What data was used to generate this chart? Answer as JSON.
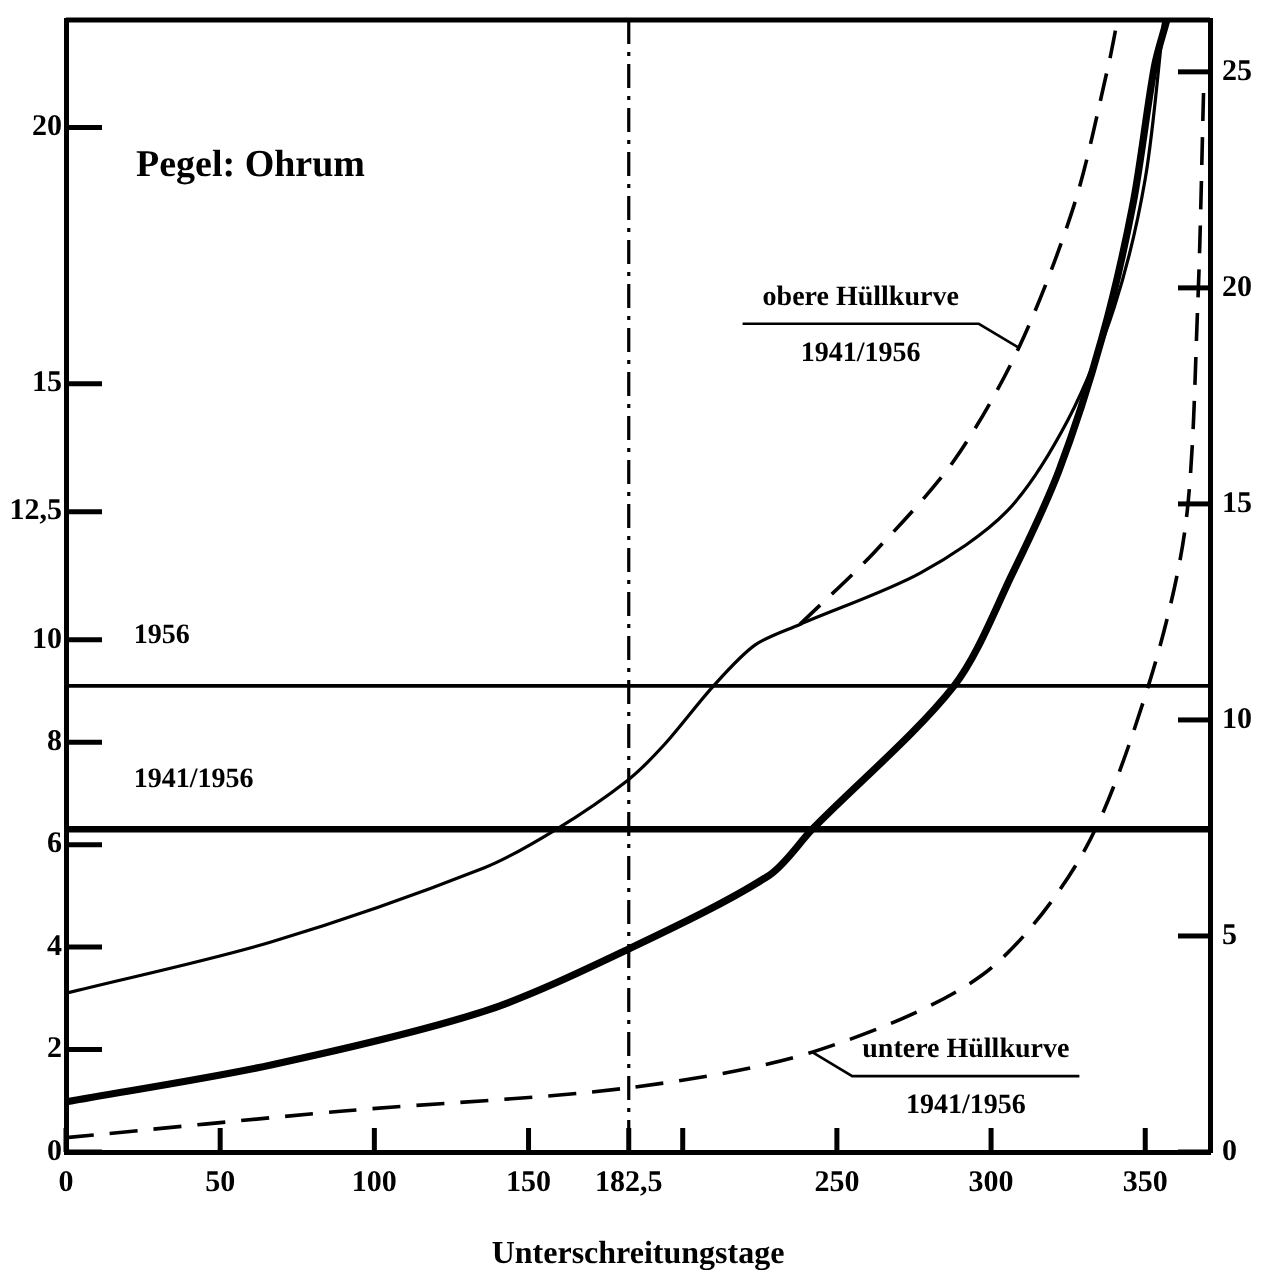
{
  "chart_data": {
    "type": "line",
    "title": "Pegel: Ohrum",
    "xlabel": "Unterschreitungstage",
    "xlim": [
      0,
      371
    ],
    "xticks": [
      0,
      50,
      100,
      150,
      {
        "value": 182.5,
        "label": "182,5"
      },
      {
        "value": 200,
        "label": null
      },
      250,
      300,
      350
    ],
    "ylim": [
      0,
      22.1
    ],
    "yticks": [
      0,
      2,
      4,
      6,
      8,
      10,
      {
        "value": 12.5,
        "label": "12,5"
      },
      15,
      20
    ],
    "y2lim": [
      0,
      26.2
    ],
    "y2ticks": [
      0,
      5,
      10,
      15,
      20,
      25
    ],
    "grid": false,
    "legend": false,
    "marker": "none",
    "series": [
      {
        "color": "#000000",
        "line_style": "solid",
        "x": [
          0,
          66.5,
          135.7,
          159,
          182,
          194,
          210,
          223.5,
          238,
          277,
          305,
          325,
          340,
          350,
          356
        ],
        "values": [
          3.1,
          4.1,
          5.55,
          6.3,
          7.25,
          7.95,
          9.1,
          9.9,
          10.3,
          11.3,
          12.5,
          14.3,
          16.5,
          19,
          22.1
        ]
      },
      {
        "color": "#000000",
        "line_style": "solid",
        "x": [
          0,
          66.5,
          135.7,
          182,
          228,
          242,
          288,
          307,
          322,
          336,
          346,
          353,
          357
        ],
        "values": [
          0.98,
          1.7,
          2.75,
          3.95,
          5.4,
          6.3,
          9.1,
          11.3,
          13.3,
          15.9,
          18.5,
          21.2,
          22.1
        ]
      },
      {
        "color": "#000000",
        "line_style": "dashed",
        "x": [
          238,
          262,
          288,
          309,
          327,
          338,
          341
        ],
        "values": [
          10.3,
          11.7,
          13.5,
          15.7,
          18.5,
          21.2,
          22.1
        ]
      },
      {
        "color": "#000000",
        "line_style": "dashed",
        "x": [
          0,
          90,
          182,
          242,
          297,
          329.5,
          351,
          363,
          367,
          369
        ],
        "values": [
          0.28,
          0.8,
          1.25,
          1.95,
          3.45,
          5.8,
          9.1,
          12.2,
          16.5,
          20.9
        ]
      }
    ],
    "ref_lines": [
      {
        "axis": "y",
        "value": 9.1,
        "line_style": "solid"
      },
      {
        "axis": "y",
        "value": 6.3,
        "line_style": "solid"
      },
      {
        "axis": "x",
        "value": 182.5,
        "line_style": "dashed"
      }
    ],
    "annotations": [
      {
        "text": "1956",
        "x": 22,
        "y": 9.1
      },
      {
        "text": "1941/1956",
        "x": 22,
        "y": 6.3
      },
      {
        "text": "obere Hüllkurve\n1941/1956",
        "x": 309,
        "y": 15.7
      },
      {
        "text": "untere Hüllkurve\n1941/1956",
        "x": 242,
        "y": 1.95
      }
    ]
  }
}
